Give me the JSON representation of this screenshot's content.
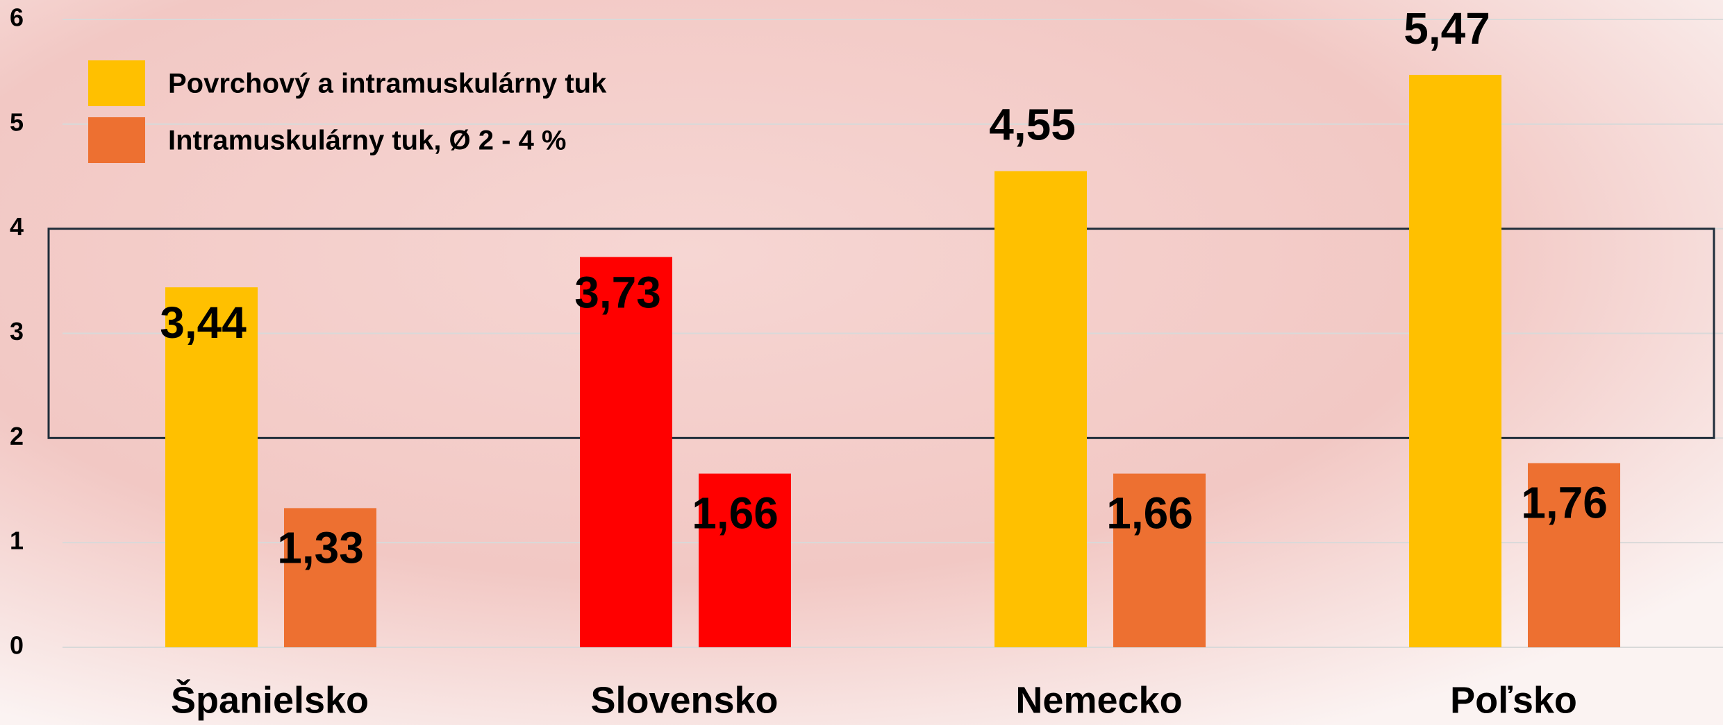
{
  "chart_data": {
    "type": "bar",
    "categories": [
      "Španielsko",
      "Slovensko",
      "Nemecko",
      "Poľsko"
    ],
    "series": [
      {
        "name": "Povrchový a intramuskulárny tuk",
        "color": "#ffc000",
        "colors": [
          "#ffc000",
          "#ff0000",
          "#ffc000",
          "#ffc000"
        ],
        "values": [
          3.44,
          3.73,
          4.55,
          5.47
        ],
        "value_labels": [
          "3,44",
          "3,73",
          "4,55",
          "5,47"
        ]
      },
      {
        "name": "Intramuskulárny tuk, Ø 2 - 4 %",
        "color": "#ed7031",
        "colors": [
          "#ed7031",
          "#ff0000",
          "#ed7031",
          "#ed7031"
        ],
        "values": [
          1.33,
          1.66,
          1.66,
          1.76
        ],
        "value_labels": [
          "1,33",
          "1,66",
          "1,66",
          "1,76"
        ]
      }
    ],
    "ylim": [
      0,
      6
    ],
    "yticks": [
      0,
      1,
      2,
      3,
      4,
      5,
      6
    ],
    "grid": true,
    "highlight_range": [
      2,
      4
    ],
    "legend": "top-left"
  }
}
